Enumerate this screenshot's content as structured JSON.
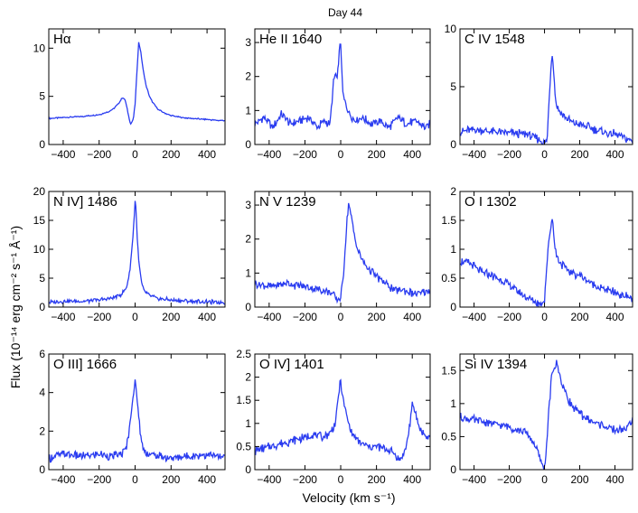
{
  "figure_title": "Day 44",
  "ylabel": "Flux (10⁻¹⁴ erg cm⁻² s⁻¹ Å⁻¹)",
  "xlabel": "Velocity (km s⁻¹)",
  "line_color": "#2a3cf0",
  "chart_data": [
    {
      "type": "line",
      "title": "Hα",
      "xlim": [
        -480,
        500
      ],
      "ylim": [
        0,
        12
      ],
      "yticks": [
        0,
        5,
        10
      ],
      "xticks": [
        -400,
        -200,
        0,
        200,
        400
      ],
      "x": [
        -480,
        -400,
        -300,
        -200,
        -150,
        -120,
        -90,
        -70,
        -55,
        -40,
        -25,
        -10,
        0,
        10,
        20,
        30,
        45,
        60,
        80,
        100,
        130,
        160,
        200,
        260,
        320,
        400,
        460,
        500
      ],
      "y": [
        2.7,
        2.8,
        2.9,
        3.1,
        3.4,
        3.7,
        4.3,
        4.9,
        4.6,
        3.3,
        2.1,
        2.6,
        4.2,
        7.5,
        10.6,
        9.8,
        7.7,
        6.2,
        5.0,
        4.3,
        3.6,
        3.3,
        3.0,
        2.8,
        2.7,
        2.6,
        2.5,
        2.5
      ]
    },
    {
      "type": "line",
      "title": "He II 1640",
      "xlim": [
        -480,
        500
      ],
      "ylim": [
        0,
        3.4
      ],
      "yticks": [
        0,
        1,
        2,
        3
      ],
      "xticks": [
        -400,
        -200,
        0,
        200,
        400
      ],
      "x": [
        -480,
        -430,
        -380,
        -330,
        -280,
        -230,
        -180,
        -130,
        -90,
        -60,
        -40,
        -30,
        -20,
        -10,
        0,
        5,
        10,
        20,
        35,
        50,
        80,
        120,
        170,
        220,
        270,
        320,
        370,
        420,
        470,
        500
      ],
      "y": [
        0.6,
        0.8,
        0.5,
        0.9,
        0.6,
        0.7,
        0.8,
        0.5,
        0.7,
        0.6,
        1.8,
        2.1,
        1.9,
        2.6,
        3.0,
        2.4,
        1.6,
        1.3,
        1.1,
        0.9,
        0.7,
        0.8,
        0.6,
        0.7,
        0.5,
        0.8,
        0.6,
        0.7,
        0.5,
        0.6
      ]
    },
    {
      "type": "line",
      "title": "C IV 1548",
      "xlim": [
        -480,
        500
      ],
      "ylim": [
        0,
        10
      ],
      "yticks": [
        0,
        5,
        10
      ],
      "xticks": [
        -400,
        -200,
        0,
        200,
        400
      ],
      "x": [
        -480,
        -400,
        -300,
        -200,
        -100,
        -50,
        0,
        15,
        25,
        35,
        45,
        55,
        65,
        80,
        100,
        130,
        160,
        200,
        250,
        300,
        350,
        400,
        450,
        500
      ],
      "y": [
        1.1,
        1.3,
        1.1,
        1.0,
        0.9,
        0.6,
        0.1,
        0.4,
        3.5,
        6.5,
        8.0,
        5.5,
        3.6,
        3.0,
        2.6,
        2.2,
        1.9,
        1.7,
        1.5,
        1.2,
        1.0,
        0.9,
        0.6,
        0.3
      ]
    },
    {
      "type": "line",
      "title": "N IV] 1486",
      "xlim": [
        -480,
        500
      ],
      "ylim": [
        0,
        20
      ],
      "yticks": [
        0,
        5,
        10,
        15,
        20
      ],
      "xticks": [
        -400,
        -200,
        0,
        200,
        400
      ],
      "x": [
        -480,
        -400,
        -300,
        -200,
        -120,
        -80,
        -50,
        -30,
        -15,
        -5,
        0,
        5,
        10,
        20,
        35,
        50,
        80,
        120,
        200,
        300,
        400,
        500
      ],
      "y": [
        0.8,
        1.0,
        1.0,
        1.2,
        1.6,
        2.2,
        3.2,
        6.0,
        11.0,
        15.5,
        18.5,
        17.0,
        13.0,
        8.0,
        4.2,
        2.8,
        2.0,
        1.5,
        1.2,
        1.0,
        0.9,
        0.8
      ]
    },
    {
      "type": "line",
      "title": "N V 1239",
      "xlim": [
        -480,
        500
      ],
      "ylim": [
        0,
        3.4
      ],
      "yticks": [
        0,
        1,
        2,
        3
      ],
      "xticks": [
        -400,
        -200,
        0,
        200,
        400
      ],
      "x": [
        -480,
        -400,
        -300,
        -200,
        -100,
        -50,
        -20,
        0,
        15,
        30,
        45,
        60,
        80,
        100,
        130,
        160,
        200,
        250,
        300,
        350,
        400,
        450,
        500
      ],
      "y": [
        0.7,
        0.6,
        0.7,
        0.6,
        0.5,
        0.4,
        0.2,
        0.3,
        0.9,
        2.2,
        3.1,
        2.6,
        2.0,
        1.6,
        1.3,
        1.1,
        0.9,
        0.7,
        0.5,
        0.5,
        0.4,
        0.4,
        0.5
      ]
    },
    {
      "type": "line",
      "title": "O I 1302",
      "xlim": [
        -480,
        500
      ],
      "ylim": [
        0,
        2
      ],
      "yticks": [
        0,
        0.5,
        1,
        1.5,
        2
      ],
      "xticks": [
        -400,
        -200,
        0,
        200,
        400
      ],
      "x": [
        -480,
        -420,
        -360,
        -300,
        -240,
        -180,
        -120,
        -60,
        -20,
        0,
        15,
        30,
        45,
        60,
        80,
        110,
        150,
        200,
        250,
        300,
        350,
        400,
        450,
        500
      ],
      "y": [
        0.8,
        0.75,
        0.6,
        0.55,
        0.45,
        0.35,
        0.2,
        0.1,
        0.05,
        0.15,
        0.8,
        1.3,
        1.55,
        1.0,
        0.8,
        0.7,
        0.6,
        0.55,
        0.45,
        0.35,
        0.3,
        0.25,
        0.2,
        0.15
      ]
    },
    {
      "type": "line",
      "title": "O III] 1666",
      "xlim": [
        -480,
        500
      ],
      "ylim": [
        0,
        6
      ],
      "yticks": [
        0,
        2,
        4,
        6
      ],
      "xticks": [
        -400,
        -200,
        0,
        200,
        400
      ],
      "x": [
        -480,
        -400,
        -300,
        -200,
        -120,
        -80,
        -50,
        -30,
        -15,
        0,
        10,
        20,
        35,
        50,
        80,
        120,
        200,
        300,
        400,
        500
      ],
      "y": [
        0.6,
        0.8,
        0.7,
        0.8,
        0.7,
        0.8,
        1.1,
        2.2,
        3.6,
        4.5,
        3.8,
        2.8,
        1.4,
        1.0,
        0.8,
        0.7,
        0.6,
        0.7,
        0.8,
        0.6
      ]
    },
    {
      "type": "line",
      "title": "O IV] 1401",
      "xlim": [
        -480,
        500
      ],
      "ylim": [
        0,
        2.5
      ],
      "yticks": [
        0,
        0.5,
        1,
        1.5,
        2,
        2.5
      ],
      "xticks": [
        -400,
        -200,
        0,
        200,
        400
      ],
      "x": [
        -480,
        -400,
        -300,
        -200,
        -150,
        -100,
        -60,
        -30,
        -10,
        0,
        10,
        30,
        60,
        100,
        150,
        200,
        250,
        300,
        330,
        360,
        380,
        400,
        420,
        440,
        460,
        480,
        500
      ],
      "y": [
        0.4,
        0.5,
        0.6,
        0.7,
        0.75,
        0.7,
        0.8,
        1.0,
        1.7,
        1.9,
        1.6,
        1.2,
        0.8,
        0.6,
        0.5,
        0.5,
        0.45,
        0.35,
        0.2,
        0.4,
        0.8,
        1.4,
        1.2,
        0.9,
        0.8,
        0.7,
        0.7
      ]
    },
    {
      "type": "line",
      "title": "Si IV 1394",
      "xlim": [
        -480,
        500
      ],
      "ylim": [
        0,
        1.75
      ],
      "yticks": [
        0,
        0.5,
        1,
        1.5
      ],
      "xticks": [
        -400,
        -200,
        0,
        200,
        400
      ],
      "x": [
        -480,
        -400,
        -300,
        -200,
        -150,
        -100,
        -60,
        -30,
        -10,
        0,
        10,
        25,
        40,
        55,
        70,
        85,
        100,
        130,
        160,
        200,
        250,
        300,
        350,
        400,
        450,
        500
      ],
      "y": [
        0.8,
        0.75,
        0.7,
        0.65,
        0.6,
        0.55,
        0.4,
        0.2,
        0.05,
        0.02,
        0.3,
        0.9,
        1.4,
        1.55,
        1.6,
        1.45,
        1.3,
        1.1,
        0.95,
        0.85,
        0.75,
        0.7,
        0.65,
        0.6,
        0.6,
        0.75
      ]
    }
  ]
}
